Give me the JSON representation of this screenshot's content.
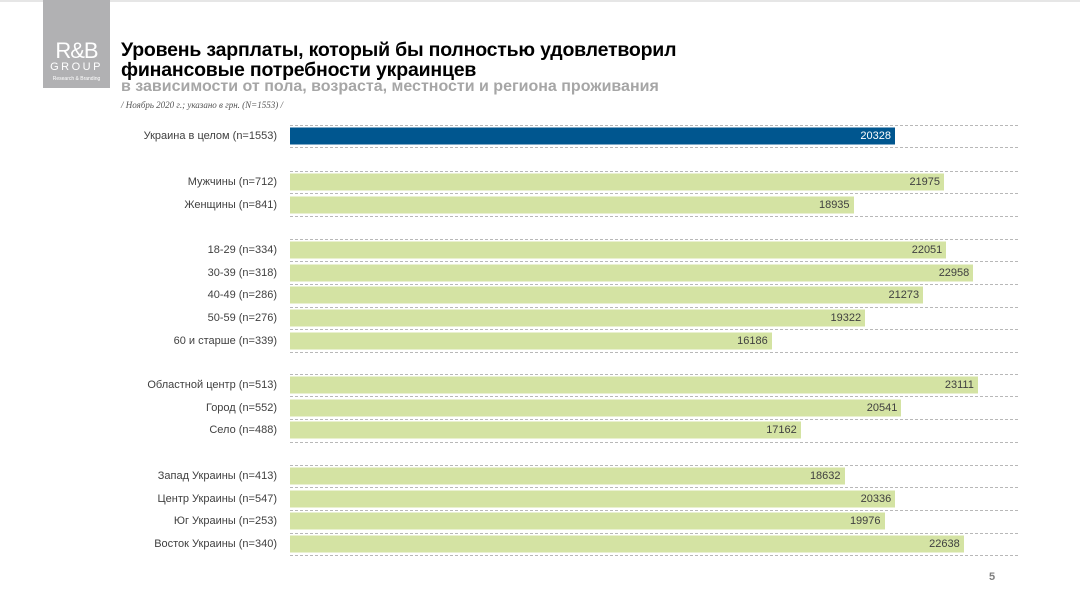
{
  "logo": {
    "line1": "R&B",
    "line2": "GROUP",
    "line3": "Research & Branding"
  },
  "title_line1": "Уровень зарплаты, который бы полностью удовлетворил",
  "title_line2": "финансовые потребности украинцев",
  "subtitle": "в зависимости от пола, возраста, местности и региона проживания",
  "note": "/ Ноябрь 2020  г.; указано в грн. (N=1553) /",
  "page_number": "5",
  "colors": {
    "total": "#00568f",
    "segment": "#d4e3a3",
    "total_text": "#ffffff",
    "segment_text": "#404040"
  },
  "chart_data": {
    "type": "bar",
    "orientation": "horizontal",
    "title": "Уровень зарплаты, который бы полностью удовлетворил финансовые потребности украинцев",
    "xlabel": "",
    "ylabel": "",
    "xlim": [
      0,
      24460
    ],
    "groups": [
      [
        {
          "category": "Украина в целом (n=1553)",
          "value": 20328,
          "highlight": true
        }
      ],
      [
        {
          "category": "Мужчины (n=712)",
          "value": 21975
        },
        {
          "category": "Женщины (n=841)",
          "value": 18935
        }
      ],
      [
        {
          "category": "18-29 (n=334)",
          "value": 22051
        },
        {
          "category": "30-39 (n=318)",
          "value": 22958
        },
        {
          "category": "40-49 (n=286)",
          "value": 21273
        },
        {
          "category": "50-59 (n=276)",
          "value": 19322
        },
        {
          "category": "60 и старше (n=339)",
          "value": 16186
        }
      ],
      [
        {
          "category": "Областной центр (n=513)",
          "value": 23111
        },
        {
          "category": "Город (n=552)",
          "value": 20541
        },
        {
          "category": "Село (n=488)",
          "value": 17162
        }
      ],
      [
        {
          "category": "Запад Украины (n=413)",
          "value": 18632
        },
        {
          "category": "Центр Украины (n=547)",
          "value": 20336
        },
        {
          "category": "Юг Украины (n=253)",
          "value": 19976
        },
        {
          "category": "Восток Украины (n=340)",
          "value": 22638
        }
      ]
    ]
  }
}
